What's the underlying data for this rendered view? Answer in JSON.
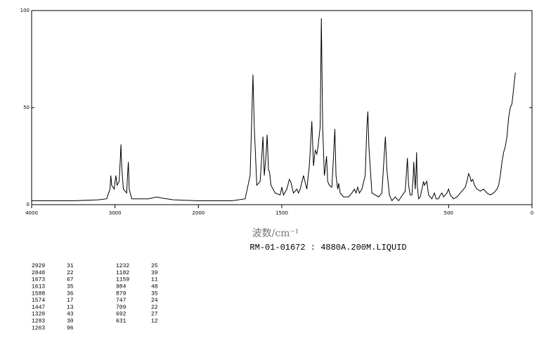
{
  "chart_data": {
    "type": "line",
    "subtitle": "RM-01-01672 : 4880A.200M.LIQUID",
    "x_label": "波数/cm⁻¹",
    "xlim": [
      4000,
      0
    ],
    "xscale_break": 2000,
    "xticks": [
      4000,
      3000,
      2000,
      1500,
      500,
      0
    ],
    "ylim": [
      0,
      100
    ],
    "yticks": [
      0,
      50,
      100
    ],
    "color": "#000000",
    "x": [
      4000,
      3500,
      3200,
      3100,
      3060,
      3050,
      3040,
      3010,
      2990,
      2975,
      2950,
      2935,
      2929,
      2920,
      2900,
      2860,
      2850,
      2840,
      2830,
      2800,
      2700,
      2600,
      2500,
      2450,
      2300,
      2000,
      1800,
      1720,
      1690,
      1680,
      1673,
      1665,
      1650,
      1630,
      1620,
      1613,
      1605,
      1595,
      1588,
      1580,
      1574,
      1565,
      1540,
      1510,
      1500,
      1490,
      1470,
      1455,
      1447,
      1430,
      1410,
      1400,
      1390,
      1370,
      1350,
      1335,
      1328,
      1320,
      1310,
      1300,
      1290,
      1283,
      1270,
      1263,
      1255,
      1245,
      1240,
      1232,
      1225,
      1215,
      1200,
      1190,
      1182,
      1175,
      1165,
      1159,
      1150,
      1130,
      1100,
      1080,
      1065,
      1055,
      1045,
      1035,
      1020,
      1000,
      990,
      984,
      978,
      960,
      920,
      900,
      890,
      879,
      870,
      855,
      840,
      830,
      820,
      800,
      760,
      750,
      747,
      740,
      730,
      720,
      712,
      709,
      700,
      695,
      692,
      688,
      680,
      670,
      660,
      650,
      645,
      631,
      620,
      600,
      590,
      585,
      575,
      560,
      550,
      540,
      530,
      510,
      500,
      490,
      470,
      450,
      430,
      420,
      400,
      390,
      380,
      370,
      365,
      355,
      345,
      330,
      310,
      290,
      270,
      250,
      230,
      210,
      200,
      190,
      180,
      170,
      160,
      150,
      140,
      130,
      120,
      110,
      100
    ],
    "values": [
      2,
      2,
      2.5,
      3,
      8,
      15,
      10,
      8,
      15,
      10,
      12,
      25,
      31,
      20,
      8,
      6,
      15,
      22,
      8,
      3,
      3,
      3,
      4,
      3.5,
      2.5,
      2,
      2,
      3,
      15,
      45,
      67,
      40,
      10,
      12,
      25,
      35,
      15,
      25,
      36,
      18,
      17,
      10,
      6,
      5,
      9,
      5,
      8,
      13,
      12,
      6,
      8,
      6,
      8,
      15,
      8,
      20,
      30,
      43,
      20,
      28,
      26,
      30,
      40,
      96,
      40,
      15,
      18,
      25,
      12,
      10,
      9,
      25,
      39,
      15,
      8,
      11,
      6,
      4,
      4,
      6,
      8,
      6,
      9,
      6,
      8,
      15,
      40,
      48,
      30,
      6,
      4,
      6,
      20,
      35,
      18,
      5,
      2,
      3,
      4,
      2,
      7,
      20,
      24,
      10,
      5,
      5,
      15,
      22,
      8,
      18,
      27,
      10,
      3,
      4,
      8,
      12,
      10,
      12,
      5,
      3,
      5,
      6,
      3,
      3,
      5,
      6,
      4,
      6,
      8,
      5,
      3,
      4,
      6,
      7,
      9,
      12,
      16,
      14,
      12,
      13,
      10,
      8,
      7,
      8,
      6,
      5,
      6,
      8,
      10,
      15,
      22,
      27,
      30,
      35,
      45,
      50,
      52,
      60,
      68
    ]
  },
  "peak_table": {
    "rows": [
      [
        2929,
        31
      ],
      [
        2840,
        22
      ],
      [
        1673,
        67
      ],
      [
        1613,
        35
      ],
      [
        1588,
        36
      ],
      [
        1574,
        17
      ],
      [
        1447,
        13
      ],
      [
        1320,
        43
      ],
      [
        1283,
        30
      ],
      [
        1263,
        96
      ],
      [
        1232,
        25
      ],
      [
        1182,
        39
      ],
      [
        1159,
        11
      ],
      [
        984,
        48
      ],
      [
        879,
        35
      ],
      [
        747,
        24
      ],
      [
        709,
        22
      ],
      [
        692,
        27
      ],
      [
        631,
        12
      ]
    ]
  }
}
